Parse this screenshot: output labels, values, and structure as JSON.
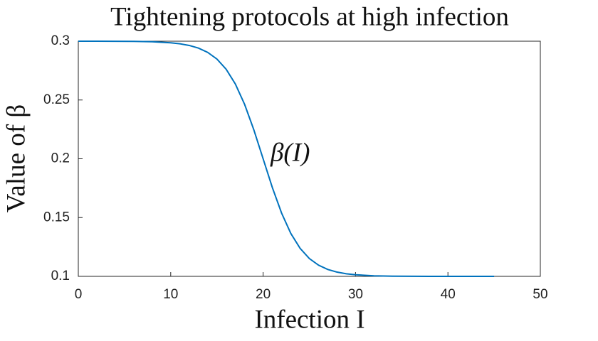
{
  "chart_data": {
    "type": "line",
    "title": "Tightening protocols at high infection",
    "x_label": "Infection I",
    "y_label": "Value of β",
    "annotation": "β(I)",
    "x": [
      0,
      2,
      4,
      6,
      8,
      10,
      11,
      12,
      13,
      14,
      15,
      16,
      17,
      18,
      19,
      20,
      21,
      22,
      23,
      24,
      25,
      26,
      27,
      28,
      29,
      30,
      32,
      34,
      36,
      38,
      40,
      45
    ],
    "series": [
      {
        "name": "β(I)",
        "color": "#0072bd",
        "values": [
          0.3,
          0.29998,
          0.29993,
          0.29982,
          0.29951,
          0.29866,
          0.2978,
          0.2964,
          0.29414,
          0.29051,
          0.28483,
          0.27616,
          0.26351,
          0.24621,
          0.22449,
          0.2,
          0.17551,
          0.15379,
          0.13649,
          0.12384,
          0.11517,
          0.10949,
          0.10586,
          0.1036,
          0.1022,
          0.10134,
          0.10049,
          0.10018,
          0.10007,
          0.10002,
          0.10001,
          0.1
        ]
      }
    ],
    "xlim": [
      0,
      50
    ],
    "ylim": [
      0.1,
      0.3
    ],
    "xticks": [
      0,
      10,
      20,
      30,
      40,
      50
    ],
    "yticks": [
      0.1,
      0.15,
      0.2,
      0.25,
      0.3
    ],
    "grid": false
  }
}
